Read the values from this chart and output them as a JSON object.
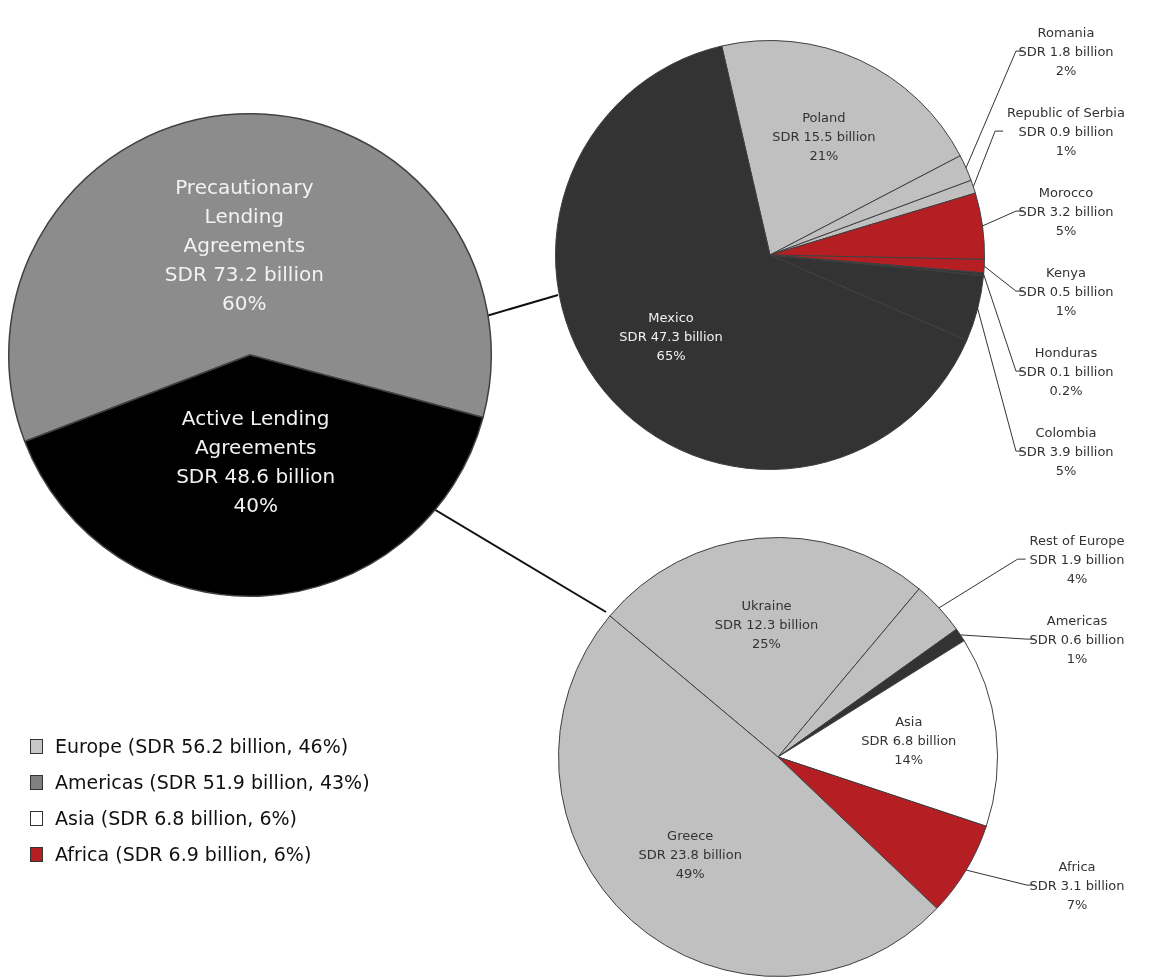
{
  "chart_data": [
    {
      "type": "pie",
      "categories": [
        "Precautionary Lending Agreements",
        "Active Lending Agreements"
      ],
      "values": [
        60,
        40
      ],
      "colors": [
        "#8c8c8c",
        "#000000"
      ],
      "value_labels": [
        "SDR 73.2 billion\n60%",
        "SDR 48.6 billion\n40%"
      ]
    },
    {
      "type": "pie",
      "categories": [
        "Poland",
        "Romania",
        "Republic of Serbia",
        "Morocco",
        "Kenya",
        "Honduras",
        "Colombia",
        "Mexico"
      ],
      "values": [
        21,
        2,
        1,
        5,
        1,
        0.2,
        5,
        65
      ],
      "colors": [
        "#c0c0c0",
        "#c0c0c0",
        "#c0c0c0",
        "#b51f24",
        "#b51f24",
        "#333333",
        "#333333",
        "#333333"
      ],
      "value_labels": [
        "SDR 15.5 billion\n21%",
        "SDR 1.8 billion\n2%",
        "SDR 0.9 billion\n1%",
        "SDR 3.2 billion\n5%",
        "SDR 0.5 billion\n1%",
        "SDR 0.1 billion\n0.2%",
        "SDR 3.9 billion\n5%",
        "SDR 47.3 billion\n65%"
      ]
    },
    {
      "type": "pie",
      "categories": [
        "Ukraine",
        "Rest of Europe",
        "Americas",
        "Asia",
        "Africa",
        "Greece"
      ],
      "values": [
        25,
        4,
        1,
        14,
        7,
        49
      ],
      "colors": [
        "#c0c0c0",
        "#c0c0c0",
        "#333333",
        "#ffffff",
        "#b51f24",
        "#c0c0c0"
      ],
      "value_labels": [
        "SDR 12.3 billion\n25%",
        "SDR 1.9 billion\n4%",
        "SDR 0.6 billion\n1%",
        "SDR 6.8 billion\n14%",
        "SDR 3.1 billion\n7%",
        "SDR 23.8 billion\n49%"
      ]
    },
    {
      "type": "other",
      "annotations": [
        "Europe (SDR 56.2 billion, 46%)",
        "Americas (SDR 51.9 billion, 43%)",
        "Asia (SDR 6.8 billion, 6%)",
        "Africa (SDR 6.9 billion, 6%)"
      ],
      "colors": [
        "#c8c8c8",
        "#808080",
        "#ffffff",
        "#b51f24"
      ]
    }
  ]
}
